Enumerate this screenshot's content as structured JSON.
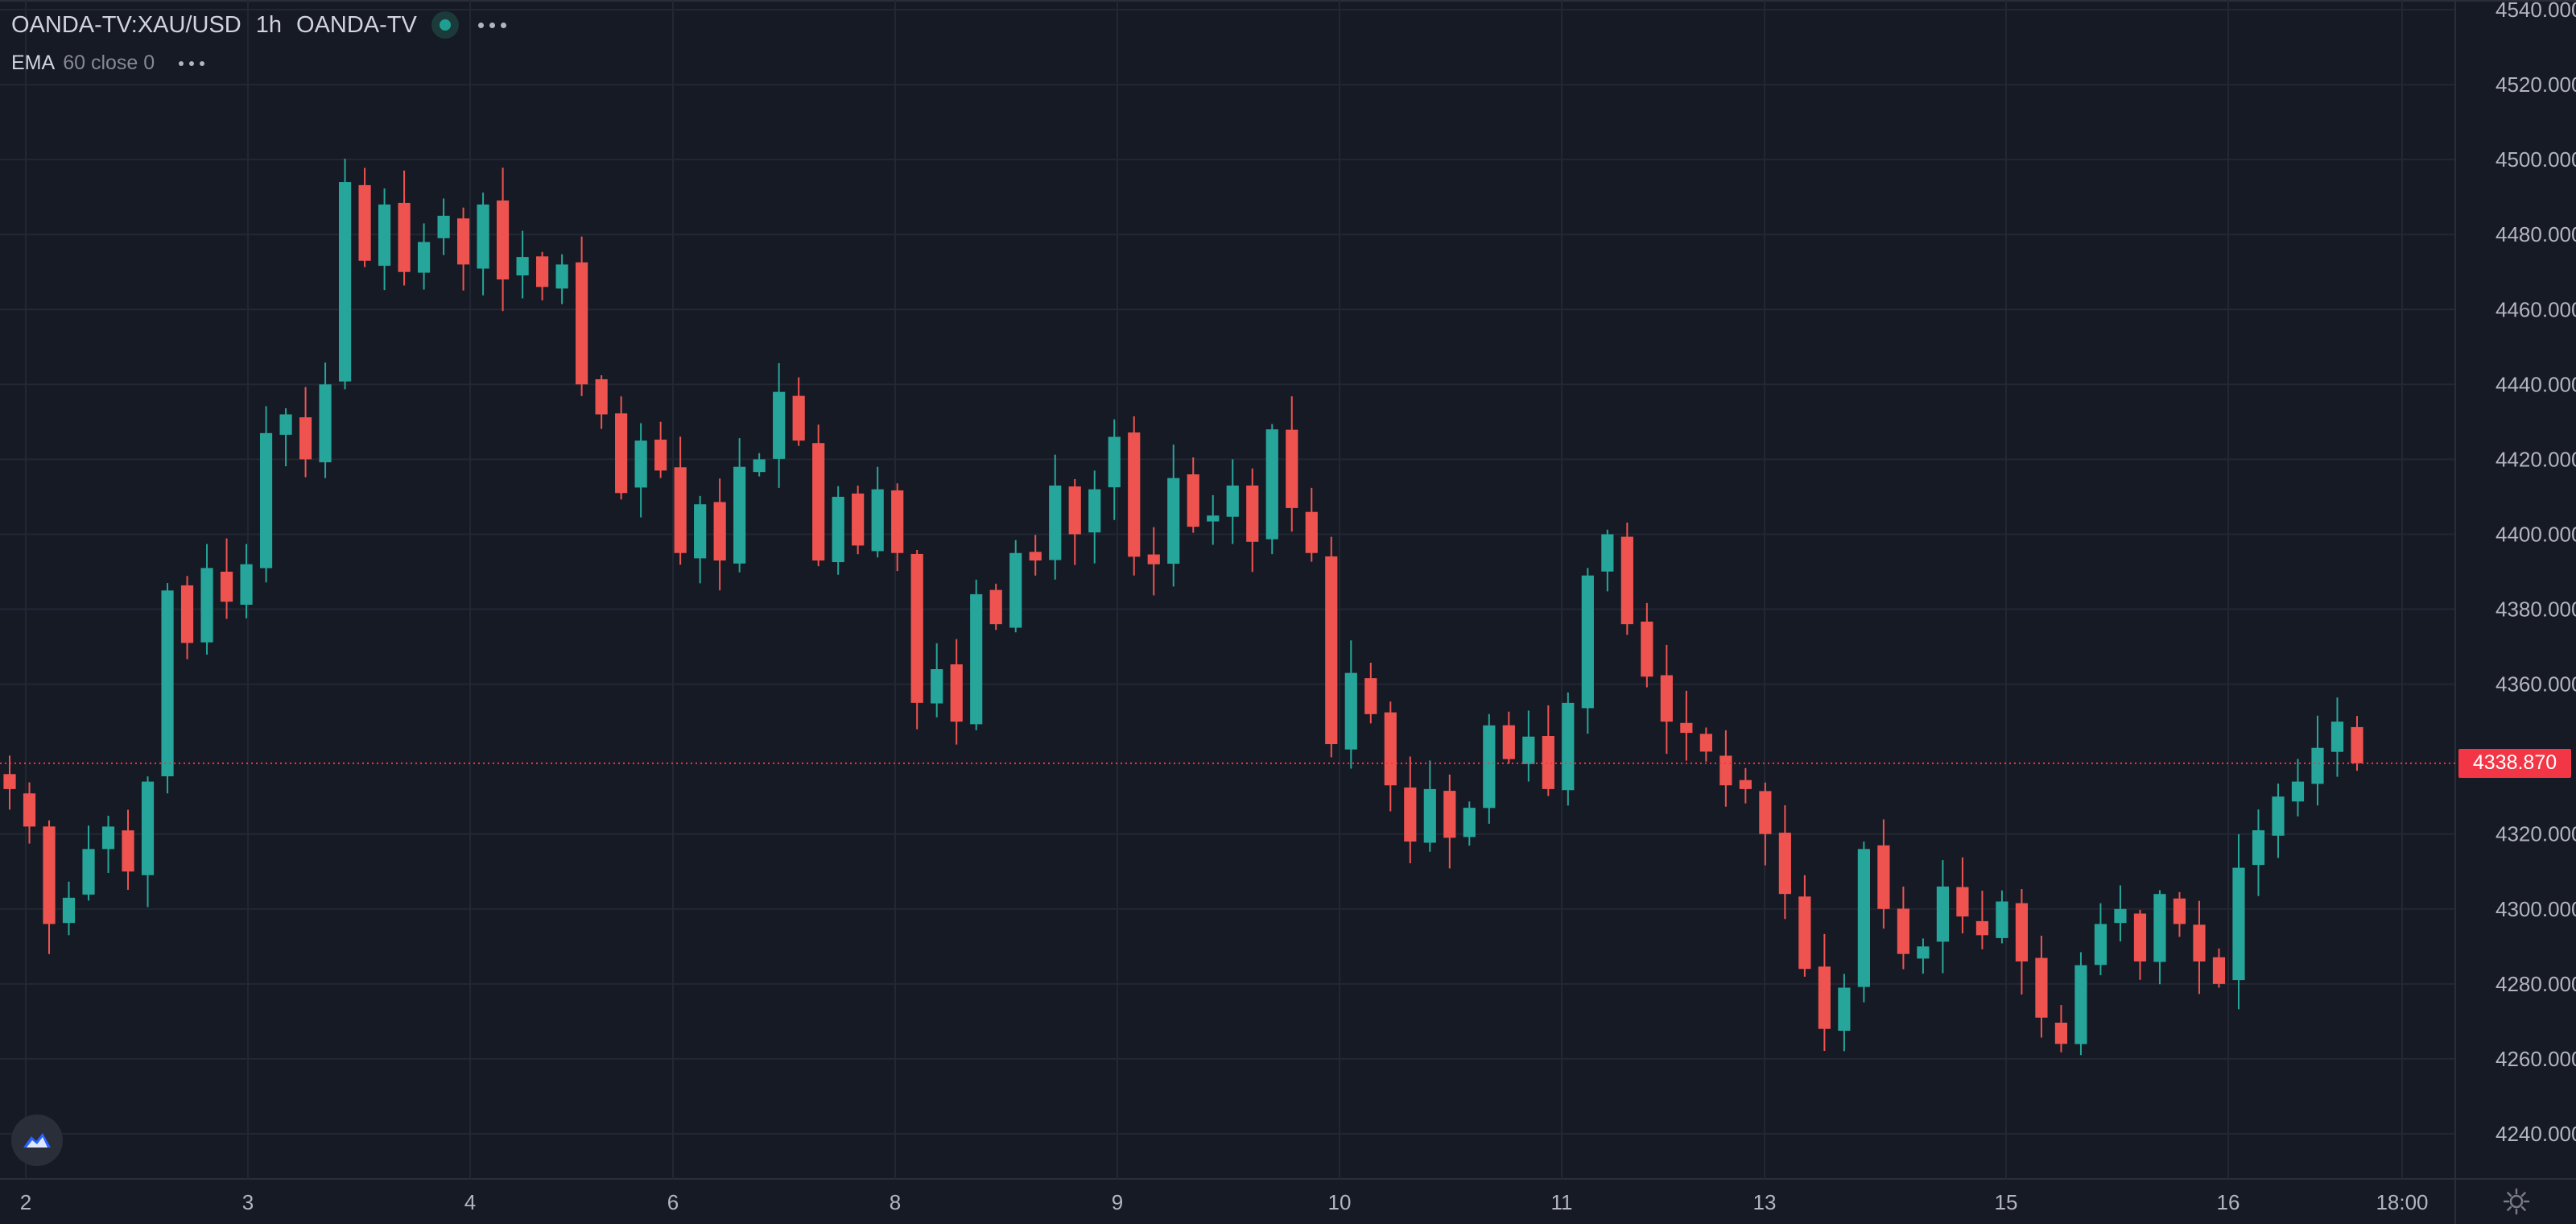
{
  "legend": {
    "symbol": "OANDA-TV:XAU/USD",
    "timeframe": "1h",
    "source": "OANDA-TV"
  },
  "indicator": {
    "name": "EMA",
    "params": "60 close 0"
  },
  "last_price": "4338.870",
  "colors": {
    "background": "#161a25",
    "up": "#26a69a",
    "down": "#ef5350",
    "grid": "#232733",
    "price_line": "#f23645",
    "axis_text": "#b2b5be"
  },
  "icons": [
    "tradingview-logo-icon",
    "settings-gear-icon",
    "more-options-icon",
    "market-status-icon"
  ],
  "chart_data": {
    "type": "candlestick",
    "title": "OANDA-TV:XAU/USD",
    "ylim": [
      4232,
      4541
    ],
    "y_ticks": [
      "4540.000",
      "4520.000",
      "4500.000",
      "4480.000",
      "4460.000",
      "4440.000",
      "4420.000",
      "4400.000",
      "4380.000",
      "4360.000",
      "4320.000",
      "4300.000",
      "4280.000",
      "4260.000",
      "4240.000"
    ],
    "x_ticks": [
      "2",
      "3",
      "4",
      "6",
      "8",
      "9",
      "10",
      "11",
      "13",
      "15",
      "16",
      "18:00"
    ],
    "grid": true,
    "ohlc_close_path": [
      4332,
      4322,
      4296,
      4303,
      4316,
      4322,
      4310,
      4334,
      4385,
      4371,
      4391,
      4382,
      4392,
      4427,
      4432,
      4420,
      4440,
      4494,
      4473,
      4488,
      4470,
      4478,
      4485,
      4472,
      4488,
      4468,
      4474,
      4466,
      4472,
      4440,
      4432,
      4411,
      4425,
      4417,
      4395,
      4408,
      4393,
      4418,
      4420,
      4438,
      4425,
      4393,
      4410,
      4397,
      4412,
      4395,
      4355,
      4364,
      4350,
      4384,
      4376,
      4395,
      4393,
      4413,
      4400,
      4412,
      4426,
      4394,
      4392,
      4415,
      4402,
      4405,
      4413,
      4398,
      4428,
      4407,
      4395,
      4344,
      4363,
      4352,
      4333,
      4318,
      4332,
      4319,
      4327,
      4349,
      4340,
      4346,
      4332,
      4355,
      4389,
      4400,
      4376,
      4362,
      4350,
      4347,
      4342,
      4333,
      4332,
      4320,
      4304,
      4284,
      4268,
      4279,
      4316,
      4300,
      4288,
      4290,
      4306,
      4298,
      4293,
      4302,
      4286,
      4271,
      4264,
      4285,
      4296,
      4300,
      4286,
      4304,
      4296,
      4286,
      4280,
      4311,
      4321,
      4330,
      4334,
      4343,
      4350,
      4338.87
    ]
  }
}
